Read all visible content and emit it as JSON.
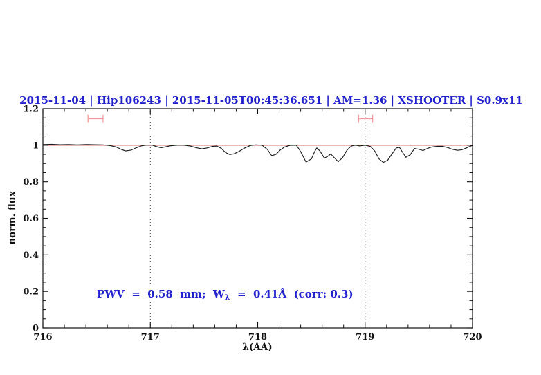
{
  "header": {
    "title": "2015-11-04 | Hip106243 | 2015-11-05T00:45:36.651 | AM=1.36 | XSHOOTER | S0.9x11",
    "color": "#2222cc"
  },
  "annotation": {
    "prefix": "PWV  =  0.58  mm;  W",
    "sub": "λ",
    "suffix": "  =  0.41Å  (corr: 0.3)",
    "color": "#2222cc"
  },
  "chart_data": {
    "type": "line",
    "title": "2015-11-04 | Hip106243 | 2015-11-05T00:45:36.651 | AM=1.36 | XSHOOTER | S0.9x11",
    "xlabel": "λ(AA)",
    "ylabel": "norm. flux",
    "xlim": [
      716,
      720
    ],
    "ylim": [
      0,
      1.2
    ],
    "grid": false,
    "x_major_ticks": [
      716,
      717,
      718,
      719,
      720
    ],
    "x_tick_labels": [
      "716",
      "717",
      "718",
      "719",
      "720"
    ],
    "x_minor_step": 0.2,
    "y_major_ticks": [
      0,
      0.2,
      0.4,
      0.6,
      0.8,
      1,
      1.2
    ],
    "y_tick_labels": [
      "0",
      "0.2",
      "0.4",
      "0.6",
      "0.8",
      "1",
      "1.2"
    ],
    "y_minor_step": 0.05,
    "guide_lines_x": [
      717,
      719
    ],
    "guide_line_color": "#3a3a3a",
    "series": [
      {
        "name": "continuum-fit",
        "color": "#cc3b3b",
        "x": [
          716,
          720
        ],
        "y": [
          1.0,
          1.0
        ]
      },
      {
        "name": "observed-spectrum",
        "color": "#1c1c1c",
        "x": [
          716.0,
          716.08,
          716.16,
          716.24,
          716.32,
          716.4,
          716.48,
          716.56,
          716.62,
          716.68,
          716.73,
          716.77,
          716.82,
          716.87,
          716.92,
          716.97,
          717.02,
          717.06,
          717.1,
          717.14,
          717.19,
          717.25,
          717.31,
          717.37,
          717.43,
          717.48,
          717.53,
          717.58,
          717.62,
          717.66,
          717.7,
          717.74,
          717.78,
          717.83,
          717.88,
          717.93,
          717.98,
          718.04,
          718.09,
          718.13,
          718.17,
          718.21,
          718.25,
          718.3,
          718.36,
          718.4,
          718.45,
          718.5,
          718.53,
          718.55,
          718.58,
          718.62,
          718.65,
          718.68,
          718.72,
          718.75,
          718.79,
          718.83,
          718.87,
          718.91,
          718.95,
          719.0,
          719.05,
          719.09,
          719.13,
          719.17,
          719.21,
          719.25,
          719.29,
          719.32,
          719.35,
          719.38,
          719.42,
          719.46,
          719.5,
          719.54,
          719.58,
          719.62,
          719.67,
          719.72,
          719.77,
          719.81,
          719.86,
          719.9,
          719.94,
          719.97,
          720.0
        ],
        "y": [
          1.004,
          1.005,
          1.003,
          1.004,
          1.002,
          1.004,
          1.003,
          1.002,
          0.998,
          0.991,
          0.977,
          0.969,
          0.973,
          0.986,
          0.997,
          1.001,
          1.0,
          0.992,
          0.986,
          0.991,
          0.997,
          1.0,
          1.0,
          0.996,
          0.986,
          0.98,
          0.985,
          0.994,
          0.995,
          0.983,
          0.96,
          0.949,
          0.953,
          0.967,
          0.985,
          0.998,
          1.002,
          1.0,
          0.977,
          0.943,
          0.95,
          0.974,
          0.99,
          0.999,
          1.0,
          0.965,
          0.908,
          0.925,
          0.965,
          0.985,
          0.968,
          0.93,
          0.938,
          0.952,
          0.928,
          0.91,
          0.932,
          0.972,
          0.995,
          1.0,
          0.996,
          1.0,
          0.993,
          0.968,
          0.925,
          0.906,
          0.918,
          0.952,
          0.985,
          0.988,
          0.96,
          0.934,
          0.948,
          0.982,
          0.978,
          0.971,
          0.982,
          0.99,
          0.994,
          0.994,
          0.987,
          0.978,
          0.972,
          0.975,
          0.984,
          0.992,
          0.999
        ]
      }
    ],
    "markers": [
      {
        "name": "telluric-band-marker-left",
        "x_from": 716.42,
        "x_to": 716.56,
        "y": 1.145,
        "cap_half_height": 0.022,
        "color": "#f29a9a"
      },
      {
        "name": "telluric-band-marker-right",
        "x_from": 718.94,
        "x_to": 719.07,
        "y": 1.145,
        "cap_half_height": 0.022,
        "color": "#f29a9a"
      }
    ]
  }
}
